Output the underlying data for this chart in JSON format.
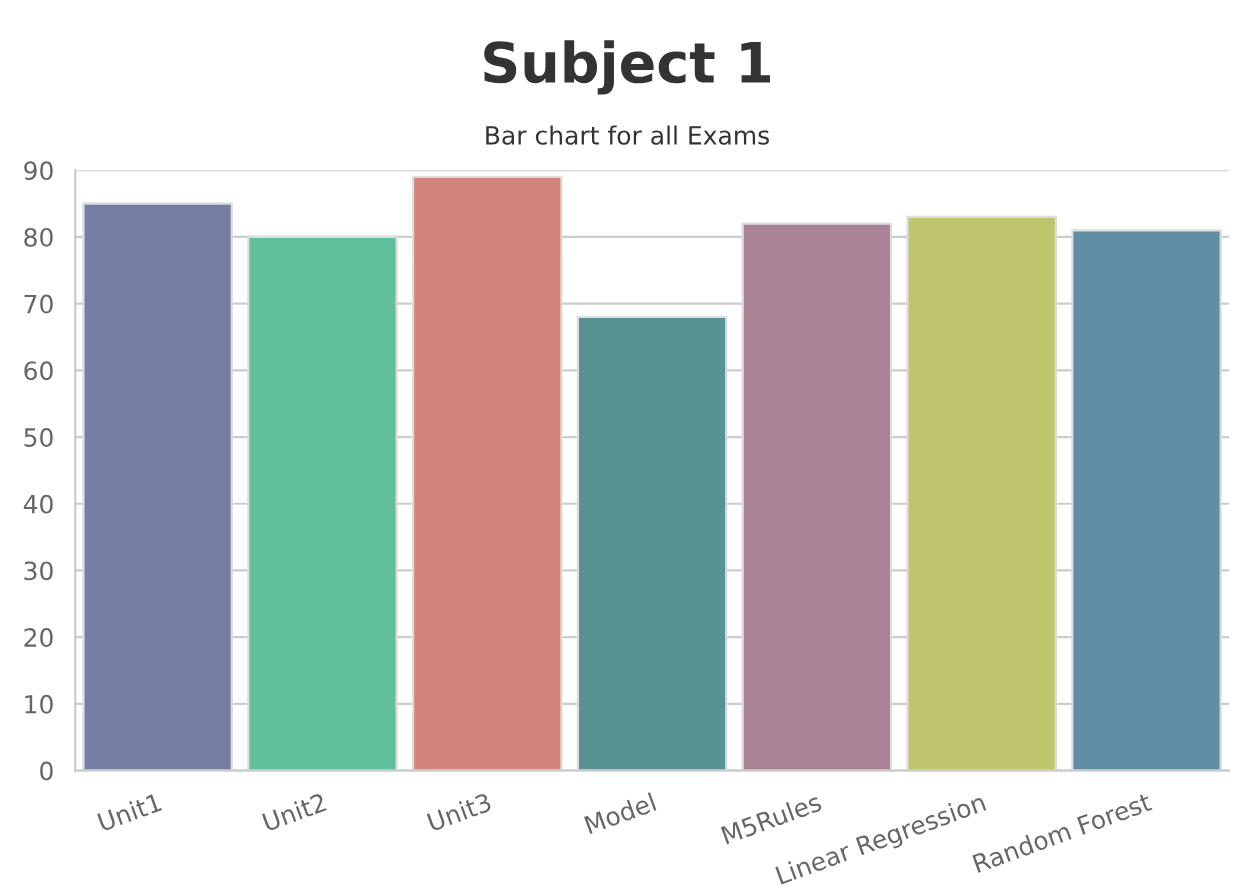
{
  "chart_data": {
    "type": "bar",
    "title": "Subject 1",
    "subtitle": "Bar chart for all Exams",
    "categories": [
      "Unit1",
      "Unit2",
      "Unit3",
      "Model",
      "M5Rules",
      "Linear Regression",
      "Random Forest"
    ],
    "values": [
      85,
      80,
      89,
      68,
      82,
      83,
      81
    ],
    "colors": [
      "#6c78ab",
      "#52cf9e",
      "#e0786d",
      "#4e9b9e",
      "#af7b97",
      "#cbd45e",
      "#5592b0"
    ],
    "ylim": [
      0,
      90
    ],
    "yticks": [
      0,
      10,
      20,
      30,
      40,
      50,
      60,
      70,
      80,
      90
    ],
    "grid": "y"
  }
}
